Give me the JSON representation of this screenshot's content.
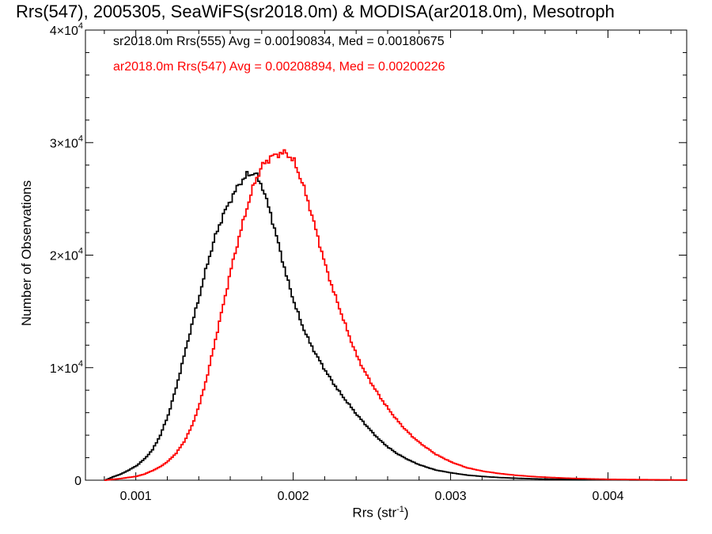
{
  "chart_data": {
    "type": "histogram",
    "title": "Rrs(547), 2005305, SeaWiFS(sr2018.0m) & MODISA(ar2018.0m), Mesotroph",
    "xlabel_base": "Rrs (str",
    "xlabel_exp": "-1",
    "xlabel_tail": ")",
    "ylabel": "Number of Observations",
    "xlim": [
      0.00068,
      0.0045
    ],
    "ylim": [
      0,
      40000
    ],
    "xticks": [
      {
        "value": 0.001,
        "label": "0.001"
      },
      {
        "value": 0.002,
        "label": "0.002"
      },
      {
        "value": 0.003,
        "label": "0.003"
      },
      {
        "value": 0.004,
        "label": "0.004"
      }
    ],
    "yticks": [
      {
        "value": 0,
        "label": "0",
        "exp": ""
      },
      {
        "value": 10000,
        "label": "1×10",
        "exp": "4"
      },
      {
        "value": 20000,
        "label": "2×10",
        "exp": "4"
      },
      {
        "value": 30000,
        "label": "3×10",
        "exp": "4"
      },
      {
        "value": 40000,
        "label": "4×10",
        "exp": "4"
      }
    ],
    "series": [
      {
        "name": "sr2018.0m Rrs(555)",
        "legend": "sr2018.0m Rrs(555) Avg = 0.00190834, Med = 0.00180675",
        "color": "#000000",
        "points": [
          [
            0.0008,
            0
          ],
          [
            0.00085,
            300
          ],
          [
            0.0009,
            550
          ],
          [
            0.00095,
            900
          ],
          [
            0.001,
            1300
          ],
          [
            0.00105,
            1900
          ],
          [
            0.0011,
            2700
          ],
          [
            0.00115,
            4000
          ],
          [
            0.0012,
            5800
          ],
          [
            0.00125,
            8200
          ],
          [
            0.0013,
            11000
          ],
          [
            0.00135,
            13800
          ],
          [
            0.0014,
            16500
          ],
          [
            0.00145,
            19300
          ],
          [
            0.0015,
            21700
          ],
          [
            0.00155,
            23600
          ],
          [
            0.0016,
            25000
          ],
          [
            0.00165,
            26300
          ],
          [
            0.0017,
            27100
          ],
          [
            0.00175,
            27300
          ],
          [
            0.0018,
            26000
          ],
          [
            0.00185,
            23700
          ],
          [
            0.0019,
            21000
          ],
          [
            0.00195,
            18200
          ],
          [
            0.002,
            15800
          ],
          [
            0.00205,
            13800
          ],
          [
            0.0021,
            12200
          ],
          [
            0.00215,
            10900
          ],
          [
            0.0022,
            9700
          ],
          [
            0.00225,
            8600
          ],
          [
            0.0023,
            7600
          ],
          [
            0.00235,
            6700
          ],
          [
            0.0024,
            5800
          ],
          [
            0.00245,
            5000
          ],
          [
            0.0025,
            4200
          ],
          [
            0.00255,
            3500
          ],
          [
            0.0026,
            2900
          ],
          [
            0.00265,
            2400
          ],
          [
            0.0027,
            2000
          ],
          [
            0.00275,
            1650
          ],
          [
            0.0028,
            1350
          ],
          [
            0.0029,
            900
          ],
          [
            0.003,
            650
          ],
          [
            0.0031,
            450
          ],
          [
            0.0032,
            330
          ],
          [
            0.0033,
            240
          ],
          [
            0.0034,
            180
          ],
          [
            0.0035,
            130
          ],
          [
            0.0036,
            100
          ],
          [
            0.0037,
            80
          ],
          [
            0.0038,
            60
          ],
          [
            0.0039,
            40
          ],
          [
            0.004,
            30
          ],
          [
            0.0042,
            20
          ],
          [
            0.0044,
            10
          ],
          [
            0.0045,
            10
          ]
        ]
      },
      {
        "name": "ar2018.0m Rrs(547)",
        "legend": "ar2018.0m Rrs(547) Avg = 0.00208894, Med = 0.00200226",
        "color": "#ff0000",
        "points": [
          [
            0.0008,
            0
          ],
          [
            0.0009,
            150
          ],
          [
            0.001,
            350
          ],
          [
            0.00105,
            550
          ],
          [
            0.0011,
            850
          ],
          [
            0.00115,
            1200
          ],
          [
            0.0012,
            1700
          ],
          [
            0.00125,
            2400
          ],
          [
            0.0013,
            3400
          ],
          [
            0.00135,
            4800
          ],
          [
            0.0014,
            6800
          ],
          [
            0.00145,
            9400
          ],
          [
            0.0015,
            12500
          ],
          [
            0.00155,
            15600
          ],
          [
            0.0016,
            18800
          ],
          [
            0.00165,
            21600
          ],
          [
            0.0017,
            24200
          ],
          [
            0.00175,
            26500
          ],
          [
            0.0018,
            28000
          ],
          [
            0.00185,
            28700
          ],
          [
            0.0019,
            29000
          ],
          [
            0.00195,
            29100
          ],
          [
            0.002,
            28300
          ],
          [
            0.00205,
            26500
          ],
          [
            0.0021,
            24200
          ],
          [
            0.00215,
            21600
          ],
          [
            0.0022,
            19000
          ],
          [
            0.00225,
            16800
          ],
          [
            0.0023,
            14800
          ],
          [
            0.00235,
            12800
          ],
          [
            0.0024,
            11000
          ],
          [
            0.00245,
            9600
          ],
          [
            0.0025,
            8400
          ],
          [
            0.00255,
            7300
          ],
          [
            0.0026,
            6300
          ],
          [
            0.00265,
            5400
          ],
          [
            0.0027,
            4600
          ],
          [
            0.00275,
            3900
          ],
          [
            0.0028,
            3300
          ],
          [
            0.0029,
            2300
          ],
          [
            0.003,
            1600
          ],
          [
            0.0031,
            1100
          ],
          [
            0.0032,
            800
          ],
          [
            0.0033,
            600
          ],
          [
            0.0034,
            450
          ],
          [
            0.0035,
            340
          ],
          [
            0.0036,
            260
          ],
          [
            0.0037,
            200
          ],
          [
            0.0038,
            150
          ],
          [
            0.0039,
            110
          ],
          [
            0.004,
            80
          ],
          [
            0.0042,
            50
          ],
          [
            0.0044,
            30
          ],
          [
            0.0045,
            20
          ]
        ]
      }
    ]
  }
}
